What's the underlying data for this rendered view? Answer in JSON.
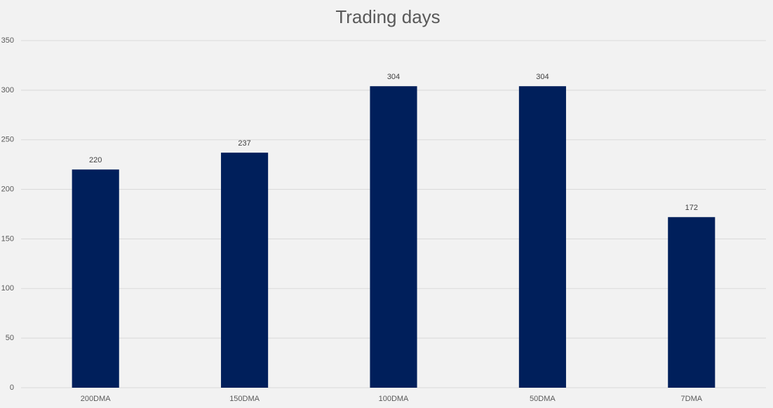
{
  "chart_data": {
    "type": "bar",
    "title": "Trading days",
    "categories": [
      "200DMA",
      "150DMA",
      "100DMA",
      "50DMA",
      "7DMA"
    ],
    "values": [
      220,
      237,
      304,
      304,
      172
    ],
    "color": "#001f5b",
    "ylim": [
      0,
      350
    ],
    "yticks": [
      0,
      50,
      100,
      150,
      200,
      250,
      300,
      350
    ],
    "grid": true
  }
}
